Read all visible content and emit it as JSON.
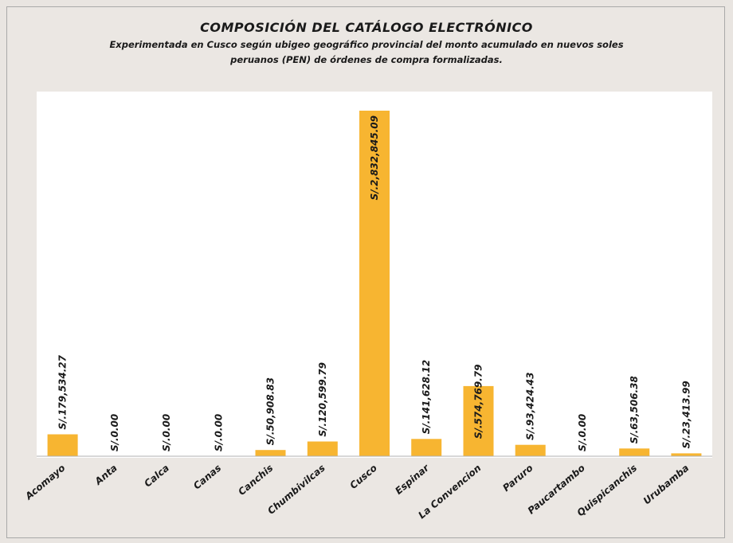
{
  "chart_data": {
    "type": "bar",
    "title": "COMPOSICIÓN DEL CATÁLOGO  ELECTRÓNICO",
    "subtitle": "Experimentada en Cusco según ubigeo geográfico provincial del monto acumulado en nuevos soles peruanos (PEN) de órdenes de compra formalizadas.",
    "categories": [
      "Acomayo",
      "Anta",
      "Calca",
      "Canas",
      "Canchis",
      "Chumbivilcas",
      "Cusco",
      "Espinar",
      "La Convencion",
      "Paruro",
      "Paucartambo",
      "Quispicanchis",
      "Urubamba"
    ],
    "values": [
      179534.27,
      0,
      0,
      0,
      50908.83,
      120599.79,
      2832845.09,
      141628.12,
      574769.79,
      93424.43,
      0,
      63506.38,
      23413.99
    ],
    "data_labels": [
      "S/.179,534.27",
      "S/.0.00",
      "S/.0.00",
      "S/.0.00",
      "S/.50,908.83",
      "S/.120,599.79",
      "S/.2,832,845.09",
      "S/.141,628.12",
      "S/.574,769.79",
      "S/.93,424.43",
      "S/.0.00",
      "S/.63,506.38",
      "S/.23,413.99"
    ],
    "bar_color": "#f7b531",
    "grid": false,
    "legend": "none",
    "xlabel": "",
    "ylabel": ""
  }
}
